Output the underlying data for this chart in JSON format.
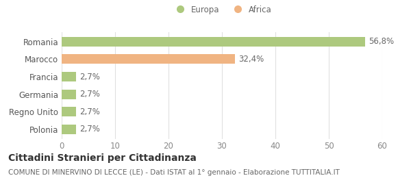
{
  "categories": [
    "Polonia",
    "Regno Unito",
    "Germania",
    "Francia",
    "Marocco",
    "Romania"
  ],
  "values": [
    2.7,
    2.7,
    2.7,
    2.7,
    32.4,
    56.8
  ],
  "bar_colors": [
    "#adc97e",
    "#adc97e",
    "#adc97e",
    "#adc97e",
    "#f0b482",
    "#adc97e"
  ],
  "bar_labels": [
    "2,7%",
    "2,7%",
    "2,7%",
    "2,7%",
    "32,4%",
    "56,8%"
  ],
  "legend_labels": [
    "Europa",
    "Africa"
  ],
  "legend_colors": [
    "#adc97e",
    "#f0b482"
  ],
  "xlim": [
    0,
    60
  ],
  "xticks": [
    0,
    10,
    20,
    30,
    40,
    50,
    60
  ],
  "title_bold": "Cittadini Stranieri per Cittadinanza",
  "subtitle": "COMUNE DI MINERVINO DI LECCE (LE) - Dati ISTAT al 1° gennaio - Elaborazione TUTTITALIA.IT",
  "background_color": "#ffffff",
  "grid_color": "#e0e0e0",
  "label_fontsize": 8.5,
  "tick_fontsize": 8.5,
  "bar_label_fontsize": 8.5,
  "title_fontsize": 10,
  "subtitle_fontsize": 7.5
}
